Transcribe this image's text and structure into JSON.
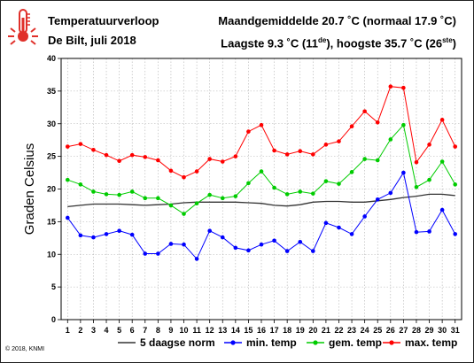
{
  "header": {
    "title": "Temperatuurverloop",
    "subtitle": "De Bilt, juli 2018",
    "line1": "Maandgemiddelde 20.7 ˚C (normaal 17.9 ˚C)",
    "line2_prefix": "Laagste 9.3 ˚C (11",
    "line2_ord1": "de",
    "line2_mid": "), hoogste 35.7 ˚C (26",
    "line2_ord2": "ste",
    "line2_suffix": ")"
  },
  "copyright": "© 2018, KNMI",
  "icon": "thermometer-icon",
  "colors": {
    "norm": "#333333",
    "min": "#0000ff",
    "gem": "#00cc00",
    "max": "#ff0000",
    "grid": "#b0b0b0"
  },
  "chart_data": {
    "type": "line",
    "ylabel": "Graden Celsius",
    "xlabel": "",
    "ylim": [
      0,
      40
    ],
    "yticks": [
      0,
      5,
      10,
      15,
      20,
      25,
      30,
      35,
      40
    ],
    "grid": true,
    "legend_position": "bottom",
    "x": [
      1,
      2,
      3,
      4,
      5,
      6,
      7,
      8,
      9,
      10,
      11,
      12,
      13,
      14,
      15,
      16,
      17,
      18,
      19,
      20,
      21,
      22,
      23,
      24,
      25,
      26,
      27,
      28,
      29,
      30,
      31
    ],
    "series": [
      {
        "key": "norm",
        "name": "5 daagse norm",
        "markers": false,
        "values": [
          17.3,
          17.5,
          17.7,
          17.7,
          17.7,
          17.6,
          17.5,
          17.6,
          17.7,
          17.9,
          18.0,
          18.0,
          18.0,
          18.0,
          17.9,
          17.8,
          17.5,
          17.4,
          17.6,
          18.0,
          18.1,
          18.1,
          18.0,
          18.0,
          18.2,
          18.4,
          18.7,
          18.9,
          19.2,
          19.2,
          19.0
        ]
      },
      {
        "key": "min",
        "name": "min. temp",
        "markers": true,
        "values": [
          15.6,
          12.9,
          12.6,
          13.1,
          13.6,
          13.0,
          10.1,
          10.1,
          11.6,
          11.5,
          9.3,
          13.6,
          12.6,
          11.0,
          10.6,
          11.5,
          12.1,
          10.5,
          11.9,
          10.5,
          14.8,
          14.1,
          13.1,
          15.8,
          18.4,
          19.4,
          22.5,
          13.4,
          13.5,
          16.8,
          13.1
        ]
      },
      {
        "key": "gem",
        "name": "gem. temp",
        "markers": true,
        "values": [
          21.4,
          20.7,
          19.6,
          19.2,
          19.1,
          19.6,
          18.6,
          18.6,
          17.5,
          16.2,
          17.8,
          19.1,
          18.6,
          18.9,
          20.9,
          22.7,
          20.2,
          19.2,
          19.6,
          19.3,
          21.2,
          20.8,
          22.6,
          24.6,
          24.4,
          27.6,
          29.8,
          20.3,
          21.4,
          24.2,
          20.7
        ]
      },
      {
        "key": "max",
        "name": "max. temp",
        "markers": true,
        "values": [
          26.5,
          26.9,
          26.0,
          25.2,
          24.3,
          25.2,
          24.9,
          24.4,
          22.8,
          21.8,
          22.7,
          24.6,
          24.2,
          25.0,
          28.8,
          29.8,
          25.9,
          25.3,
          25.8,
          25.3,
          26.8,
          27.3,
          29.6,
          31.9,
          30.2,
          35.7,
          35.5,
          24.1,
          26.8,
          30.6,
          26.5
        ]
      }
    ]
  }
}
